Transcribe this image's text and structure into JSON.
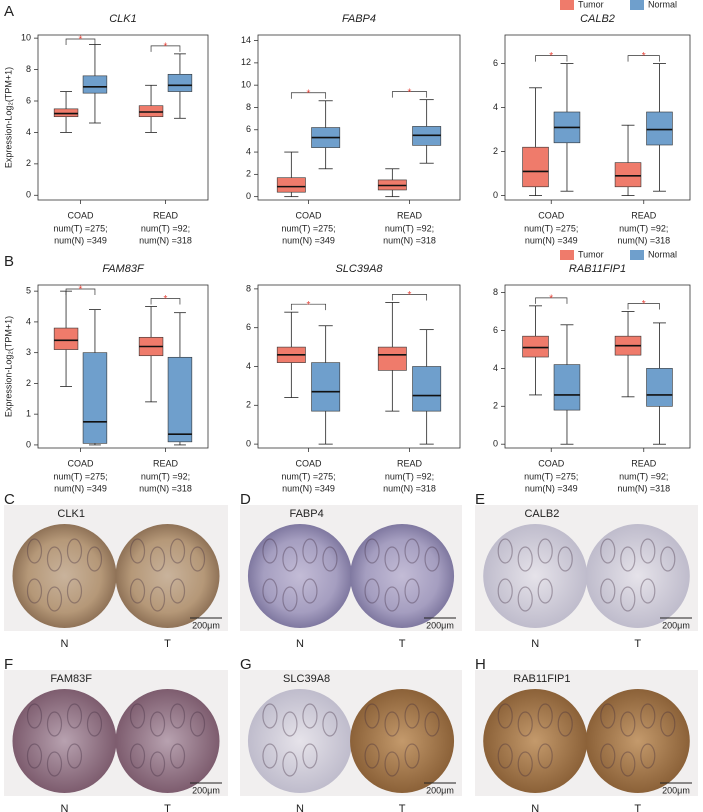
{
  "panel_letters": [
    "A",
    "B"
  ],
  "chart_data": [
    {
      "type": "box",
      "title": "CLK1",
      "ylabel": "Expression-Log₂(TPM+1)",
      "categories": [
        "COAD",
        "READ"
      ],
      "category_notes": [
        [
          "num(T) =275;",
          "num(N) =349"
        ],
        [
          "num(T) =92;",
          "num(N) =318"
        ]
      ],
      "significance": [
        "*",
        "*"
      ],
      "series": [
        {
          "name": "Tumor",
          "color": "#ef7b6b",
          "values": [
            {
              "min": 4.0,
              "q1": 5.0,
              "median": 5.2,
              "q3": 5.5,
              "max": 6.6
            },
            {
              "min": 4.0,
              "q1": 5.0,
              "median": 5.3,
              "q3": 5.7,
              "max": 7.0
            }
          ]
        },
        {
          "name": "Normal",
          "color": "#6f9fcc",
          "values": [
            {
              "min": 4.6,
              "q1": 6.5,
              "median": 6.9,
              "q3": 7.6,
              "max": 9.6
            },
            {
              "min": 4.9,
              "q1": 6.6,
              "median": 7.0,
              "q3": 7.7,
              "max": 9.0
            }
          ]
        }
      ],
      "ylim": [
        -0.3,
        10.2
      ],
      "yticks": [
        0,
        2,
        4,
        6,
        8,
        10
      ]
    },
    {
      "type": "box",
      "title": "FABP4",
      "categories": [
        "COAD",
        "READ"
      ],
      "category_notes": [
        [
          "num(T) =275;",
          "num(N) =349"
        ],
        [
          "num(T) =92;",
          "num(N) =318"
        ]
      ],
      "significance": [
        "*",
        "*"
      ],
      "series": [
        {
          "name": "Tumor",
          "color": "#ef7b6b",
          "values": [
            {
              "min": 0,
              "q1": 0.4,
              "median": 0.9,
              "q3": 1.7,
              "max": 4.0
            },
            {
              "min": 0,
              "q1": 0.6,
              "median": 1.0,
              "q3": 1.5,
              "max": 2.5
            }
          ]
        },
        {
          "name": "Normal",
          "color": "#6f9fcc",
          "values": [
            {
              "min": 2.5,
              "q1": 4.4,
              "median": 5.3,
              "q3": 6.2,
              "max": 8.6
            },
            {
              "min": 3.0,
              "q1": 4.6,
              "median": 5.5,
              "q3": 6.3,
              "max": 8.7
            }
          ]
        }
      ],
      "ylim": [
        -0.3,
        14.5
      ],
      "yticks": [
        0,
        2,
        4,
        6,
        8,
        10,
        12,
        14
      ]
    },
    {
      "type": "box",
      "title": "CALB2",
      "categories": [
        "COAD",
        "READ"
      ],
      "legend": "top-right",
      "category_notes": [
        [
          "num(T) =275;",
          "num(N) =349"
        ],
        [
          "num(T) =92;",
          "num(N) =318"
        ]
      ],
      "significance": [
        "*",
        "*"
      ],
      "series": [
        {
          "name": "Tumor",
          "color": "#ef7b6b",
          "values": [
            {
              "min": 0,
              "q1": 0.4,
              "median": 1.1,
              "q3": 2.2,
              "max": 4.9
            },
            {
              "min": 0,
              "q1": 0.4,
              "median": 0.9,
              "q3": 1.5,
              "max": 3.2
            }
          ]
        },
        {
          "name": "Normal",
          "color": "#6f9fcc",
          "values": [
            {
              "min": 0.2,
              "q1": 2.4,
              "median": 3.1,
              "q3": 3.8,
              "max": 6.0
            },
            {
              "min": 0.2,
              "q1": 2.3,
              "median": 3.0,
              "q3": 3.8,
              "max": 6.0
            }
          ]
        }
      ],
      "ylim": [
        -0.2,
        7.3
      ],
      "yticks": [
        0,
        2,
        4,
        6
      ]
    },
    {
      "type": "box",
      "title": "FAM83F",
      "ylabel": "Expression-Log₂(TPM+1)",
      "categories": [
        "COAD",
        "READ"
      ],
      "category_notes": [
        [
          "num(T) =275;",
          "num(N) =349"
        ],
        [
          "num(T) =92;",
          "num(N) =318"
        ]
      ],
      "significance": [
        "*",
        "*"
      ],
      "series": [
        {
          "name": "Tumor",
          "color": "#ef7b6b",
          "values": [
            {
              "min": 1.9,
              "q1": 3.1,
              "median": 3.4,
              "q3": 3.8,
              "max": 5.0
            },
            {
              "min": 1.4,
              "q1": 2.9,
              "median": 3.2,
              "q3": 3.5,
              "max": 4.5
            }
          ]
        },
        {
          "name": "Normal",
          "color": "#6f9fcc",
          "values": [
            {
              "min": 0,
              "q1": 0.05,
              "median": 0.75,
              "q3": 3.0,
              "max": 4.4
            },
            {
              "min": 0,
              "q1": 0.1,
              "median": 0.35,
              "q3": 2.85,
              "max": 4.3
            }
          ]
        }
      ],
      "ylim": [
        -0.1,
        5.2
      ],
      "yticks": [
        0,
        1,
        2,
        3,
        4,
        5
      ]
    },
    {
      "type": "box",
      "title": "SLC39A8",
      "categories": [
        "COAD",
        "READ"
      ],
      "category_notes": [
        [
          "num(T) =275;",
          "num(N) =349"
        ],
        [
          "num(T) =92;",
          "num(N) =318"
        ]
      ],
      "significance": [
        "*",
        "*"
      ],
      "series": [
        {
          "name": "Tumor",
          "color": "#ef7b6b",
          "values": [
            {
              "min": 2.4,
              "q1": 4.2,
              "median": 4.6,
              "q3": 5.0,
              "max": 6.8
            },
            {
              "min": 1.7,
              "q1": 3.8,
              "median": 4.6,
              "q3": 5.0,
              "max": 7.3
            }
          ]
        },
        {
          "name": "Normal",
          "color": "#6f9fcc",
          "values": [
            {
              "min": 0,
              "q1": 1.7,
              "median": 2.7,
              "q3": 4.2,
              "max": 6.1
            },
            {
              "min": 0,
              "q1": 1.7,
              "median": 2.5,
              "q3": 4.0,
              "max": 5.9
            }
          ]
        }
      ],
      "ylim": [
        -0.2,
        8.2
      ],
      "yticks": [
        0,
        2,
        4,
        6,
        8
      ]
    },
    {
      "type": "box",
      "title": "RAB11FIP1",
      "categories": [
        "COAD",
        "READ"
      ],
      "legend": "top-right",
      "category_notes": [
        [
          "num(T) =275;",
          "num(N) =349"
        ],
        [
          "num(T) =92;",
          "num(N) =318"
        ]
      ],
      "significance": [
        "*",
        "*"
      ],
      "series": [
        {
          "name": "Tumor",
          "color": "#ef7b6b",
          "values": [
            {
              "min": 2.6,
              "q1": 4.6,
              "median": 5.1,
              "q3": 5.7,
              "max": 7.3
            },
            {
              "min": 2.5,
              "q1": 4.7,
              "median": 5.2,
              "q3": 5.7,
              "max": 7.0
            }
          ]
        },
        {
          "name": "Normal",
          "color": "#6f9fcc",
          "values": [
            {
              "min": 0,
              "q1": 1.8,
              "median": 2.6,
              "q3": 4.2,
              "max": 6.3
            },
            {
              "min": 0,
              "q1": 2.0,
              "median": 2.6,
              "q3": 4.0,
              "max": 6.4
            }
          ]
        }
      ],
      "ylim": [
        -0.2,
        8.4
      ],
      "yticks": [
        0,
        2,
        4,
        6,
        8
      ]
    }
  ],
  "ihc_panels": [
    {
      "letter": "C",
      "title": "CLK1",
      "labels": [
        "N",
        "T"
      ],
      "scale": "200μm"
    },
    {
      "letter": "D",
      "title": "FABP4",
      "labels": [
        "N",
        "T"
      ],
      "scale": "200μm"
    },
    {
      "letter": "E",
      "title": "CALB2",
      "labels": [
        "N",
        "T"
      ],
      "scale": "200μm"
    },
    {
      "letter": "F",
      "title": "FAM83F",
      "labels": [
        "N",
        "T"
      ],
      "scale": "200μm"
    },
    {
      "letter": "G",
      "title": "SLC39A8",
      "labels": [
        "N",
        "T"
      ],
      "scale": "200μm"
    },
    {
      "letter": "H",
      "title": "RAB11FIP1",
      "labels": [
        "N",
        "T"
      ],
      "scale": "200μm"
    }
  ]
}
